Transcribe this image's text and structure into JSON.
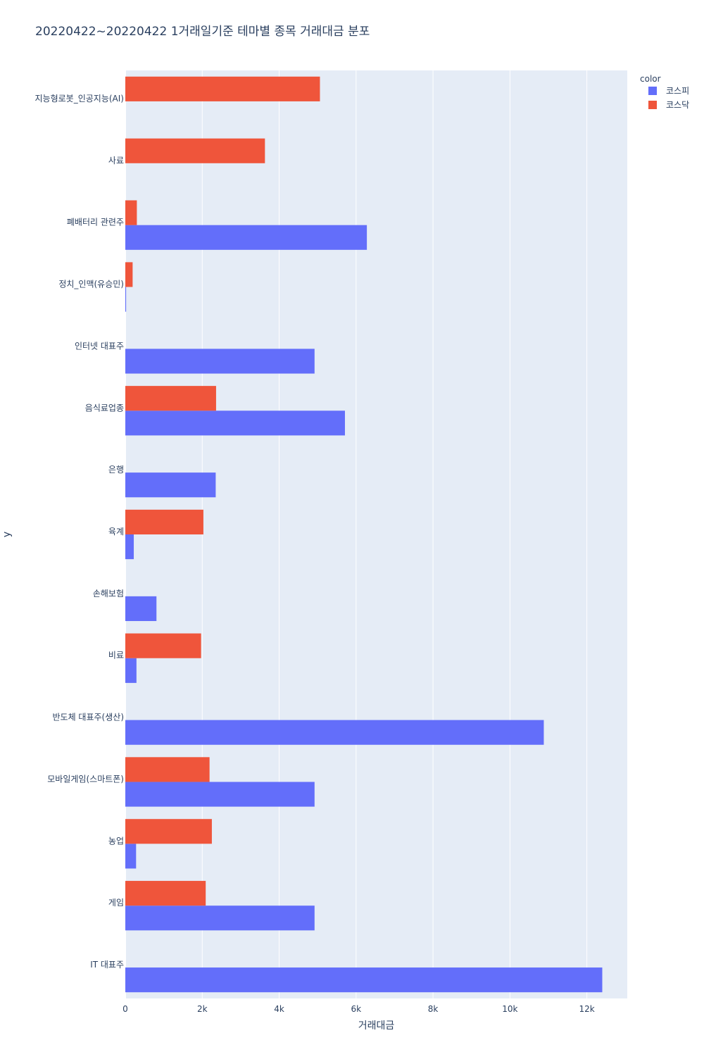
{
  "chart_data": {
    "type": "bar",
    "orientation": "horizontal",
    "barmode": "group",
    "title": "20220422~20220422 1거래일기준 테마별 종목 거래대금 분포",
    "xlabel": "거래대금",
    "ylabel": "y",
    "xlim": [
      0,
      13050
    ],
    "x_ticks": [
      0,
      2000,
      4000,
      6000,
      8000,
      10000,
      12000
    ],
    "x_tick_labels": [
      "0",
      "2k",
      "4k",
      "6k",
      "8k",
      "10k",
      "12k"
    ],
    "grid": true,
    "legend_title": "color",
    "legend_position": "top-right",
    "categories": [
      "지능형로봇_인공지능(AI)",
      "사료",
      "폐배터리 관련주",
      "정치_인맥(유승민)",
      "인터넷 대표주",
      "음식료업종",
      "은행",
      "육계",
      "손해보험",
      "비료",
      "반도체 대표주(생산)",
      "모바일게임(스마트폰)",
      "농업",
      "게임",
      "IT 대표주"
    ],
    "series": [
      {
        "name": "코스피",
        "color": "#636efa",
        "values": [
          0,
          0,
          6280,
          20,
          4920,
          5710,
          2350,
          220,
          810,
          290,
          10880,
          4920,
          280,
          4920,
          12400
        ]
      },
      {
        "name": "코스닥",
        "color": "#ef553b",
        "values": [
          5060,
          3630,
          300,
          190,
          0,
          2360,
          0,
          2030,
          0,
          1970,
          0,
          2190,
          2250,
          2090,
          0
        ]
      }
    ],
    "plot_bg": "#e5ecf6",
    "grid_color": "#ffffff"
  }
}
